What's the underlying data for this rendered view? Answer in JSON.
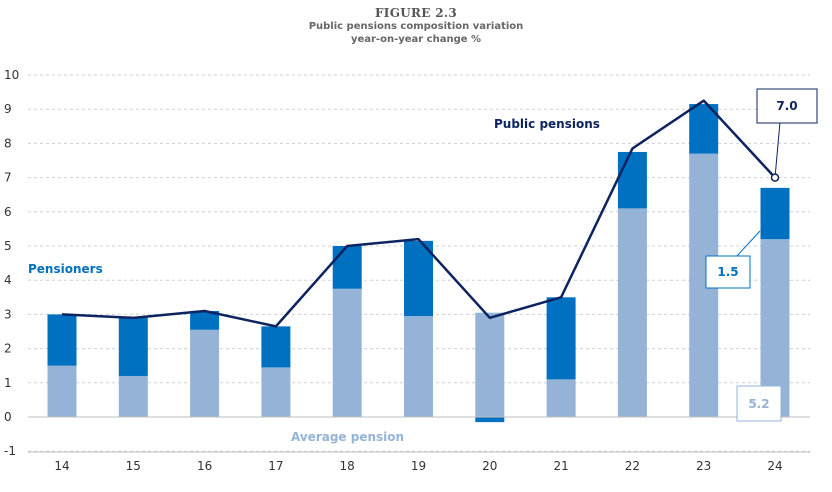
{
  "figure": {
    "title": "FIGURE 2.3",
    "subtitle_1": "Public pensions composition variation",
    "subtitle_2": "year-on-year change %"
  },
  "colors": {
    "average_pension": "#95B3D7",
    "pensioners": "#0070C0",
    "public_pensions_line": "#0D2460",
    "grid": "#D0D0D0"
  },
  "chart_data": {
    "type": "bar",
    "stacked": true,
    "categories": [
      "14",
      "15",
      "16",
      "17",
      "18",
      "19",
      "20",
      "21",
      "22",
      "23",
      "24"
    ],
    "series": [
      {
        "name": "Average pension",
        "type": "bar",
        "values": [
          1.5,
          1.2,
          2.55,
          1.45,
          3.75,
          2.95,
          -0.15,
          1.1,
          6.1,
          7.7,
          5.2
        ]
      },
      {
        "name": "Pensioners",
        "type": "bar",
        "values": [
          1.5,
          1.7,
          0.55,
          1.2,
          1.25,
          2.2,
          3.05,
          2.4,
          1.65,
          1.45,
          1.5
        ]
      },
      {
        "name": "Public pensions",
        "type": "line",
        "values": [
          3.0,
          2.9,
          3.1,
          2.65,
          5.0,
          5.2,
          2.9,
          3.5,
          7.85,
          9.25,
          7.0
        ]
      }
    ],
    "ylim": [
      -1,
      10
    ],
    "yticks": [
      "-1",
      "0",
      "1",
      "2",
      "3",
      "4",
      "5",
      "6",
      "7",
      "8",
      "9",
      "10"
    ],
    "grid": true,
    "annotations": {
      "total_label": "7.0",
      "pensioners_label": "1.5",
      "average_label": "5.2"
    }
  }
}
